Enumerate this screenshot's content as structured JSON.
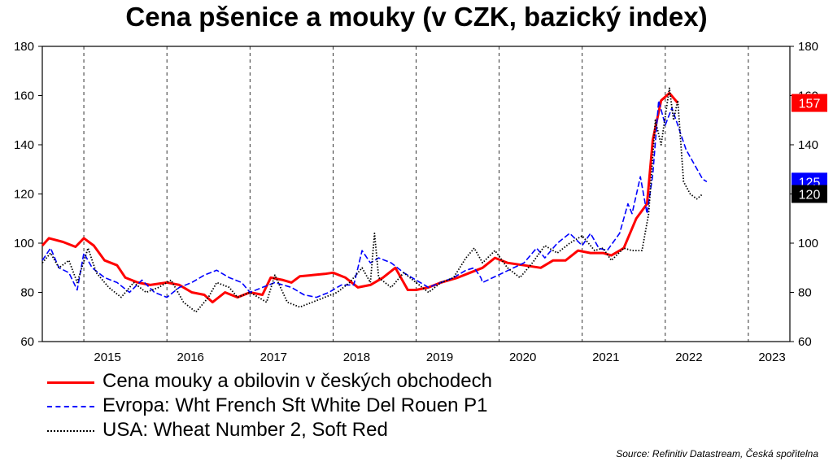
{
  "chart_data": {
    "type": "line",
    "title": "Cena pšenice a mouky (v CZK, bazický index)",
    "y_ticks": [
      60,
      80,
      100,
      120,
      140,
      160,
      180
    ],
    "x_ticks": [
      "2015",
      "2016",
      "2017",
      "2018",
      "2019",
      "2020",
      "2021",
      "2022",
      "2023"
    ],
    "ylim": [
      60,
      180
    ],
    "xlim": [
      2014.5,
      2023.5
    ],
    "grid": "vertical year lines only",
    "legend_position": "bottom",
    "series": [
      {
        "name": "Cena mouky a obilovin v českých obchodech",
        "color": "#ff0000",
        "style": "solid",
        "end_label": "157",
        "points": [
          [
            2014.5,
            99
          ],
          [
            2014.58,
            102
          ],
          [
            2014.75,
            100.5
          ],
          [
            2014.9,
            98.5
          ],
          [
            2015.0,
            102
          ],
          [
            2015.12,
            99
          ],
          [
            2015.25,
            93
          ],
          [
            2015.4,
            91
          ],
          [
            2015.5,
            86
          ],
          [
            2015.65,
            84
          ],
          [
            2015.8,
            83
          ],
          [
            2016.0,
            84
          ],
          [
            2016.15,
            83
          ],
          [
            2016.3,
            80
          ],
          [
            2016.45,
            79
          ],
          [
            2016.55,
            76
          ],
          [
            2016.7,
            80
          ],
          [
            2016.85,
            78
          ],
          [
            2017.0,
            80
          ],
          [
            2017.15,
            79
          ],
          [
            2017.25,
            86
          ],
          [
            2017.4,
            85
          ],
          [
            2017.5,
            84
          ],
          [
            2017.6,
            86.5
          ],
          [
            2017.75,
            87
          ],
          [
            2017.9,
            87.5
          ],
          [
            2018.0,
            88
          ],
          [
            2018.15,
            86
          ],
          [
            2018.3,
            82
          ],
          [
            2018.45,
            83
          ],
          [
            2018.6,
            86
          ],
          [
            2018.75,
            90
          ],
          [
            2018.9,
            81
          ],
          [
            2019.0,
            81
          ],
          [
            2019.15,
            82
          ],
          [
            2019.3,
            84
          ],
          [
            2019.5,
            86
          ],
          [
            2019.65,
            88
          ],
          [
            2019.8,
            90
          ],
          [
            2019.95,
            94
          ],
          [
            2020.1,
            92
          ],
          [
            2020.3,
            91
          ],
          [
            2020.5,
            90
          ],
          [
            2020.65,
            93
          ],
          [
            2020.8,
            93
          ],
          [
            2020.95,
            97
          ],
          [
            2021.1,
            96
          ],
          [
            2021.25,
            96
          ],
          [
            2021.35,
            95
          ],
          [
            2021.5,
            98
          ],
          [
            2021.65,
            110
          ],
          [
            2021.78,
            116
          ],
          [
            2021.85,
            142
          ],
          [
            2021.95,
            158
          ],
          [
            2022.05,
            161
          ],
          [
            2022.15,
            157
          ]
        ]
      },
      {
        "name": "Evropa: Wht French Sft White Del Rouen P1",
        "color": "#0000ff",
        "style": "dashed",
        "end_label": "125",
        "points": [
          [
            2014.5,
            93
          ],
          [
            2014.6,
            98
          ],
          [
            2014.7,
            90
          ],
          [
            2014.82,
            88
          ],
          [
            2014.92,
            81
          ],
          [
            2015.0,
            96
          ],
          [
            2015.1,
            90
          ],
          [
            2015.25,
            86
          ],
          [
            2015.4,
            84
          ],
          [
            2015.55,
            80
          ],
          [
            2015.7,
            85
          ],
          [
            2015.85,
            80
          ],
          [
            2016.0,
            78
          ],
          [
            2016.15,
            82
          ],
          [
            2016.3,
            84
          ],
          [
            2016.45,
            87
          ],
          [
            2016.6,
            89
          ],
          [
            2016.75,
            86
          ],
          [
            2016.9,
            84
          ],
          [
            2017.0,
            80
          ],
          [
            2017.15,
            82
          ],
          [
            2017.3,
            84
          ],
          [
            2017.5,
            82
          ],
          [
            2017.65,
            79
          ],
          [
            2017.8,
            78
          ],
          [
            2017.95,
            80
          ],
          [
            2018.1,
            83
          ],
          [
            2018.25,
            83
          ],
          [
            2018.35,
            97
          ],
          [
            2018.45,
            92
          ],
          [
            2018.55,
            94
          ],
          [
            2018.7,
            92
          ],
          [
            2018.85,
            88
          ],
          [
            2019.0,
            85
          ],
          [
            2019.15,
            82
          ],
          [
            2019.3,
            84
          ],
          [
            2019.45,
            86
          ],
          [
            2019.6,
            89
          ],
          [
            2019.7,
            90
          ],
          [
            2019.78,
            86
          ],
          [
            2019.8,
            84
          ],
          [
            2020.3,
            92
          ],
          [
            2020.45,
            98
          ],
          [
            2020.55,
            94
          ],
          [
            2020.7,
            100
          ],
          [
            2020.85,
            104
          ],
          [
            2021.0,
            99
          ],
          [
            2021.1,
            104
          ],
          [
            2021.2,
            98
          ],
          [
            2021.3,
            97
          ],
          [
            2021.45,
            104
          ],
          [
            2021.55,
            116
          ],
          [
            2021.6,
            112
          ],
          [
            2021.7,
            127
          ],
          [
            2021.78,
            112
          ],
          [
            2021.85,
            128
          ],
          [
            2021.92,
            158
          ],
          [
            2022.0,
            148
          ],
          [
            2022.08,
            155
          ],
          [
            2022.18,
            145
          ],
          [
            2022.25,
            138
          ],
          [
            2022.35,
            132
          ],
          [
            2022.45,
            126
          ],
          [
            2022.5,
            125
          ]
        ]
      },
      {
        "name": "USA: Wheat Number 2, Soft Red",
        "color": "#000000",
        "style": "dotted",
        "end_label": "120",
        "points": [
          [
            2014.5,
            92
          ],
          [
            2014.6,
            96
          ],
          [
            2014.7,
            90
          ],
          [
            2014.82,
            93
          ],
          [
            2014.92,
            84
          ],
          [
            2015.05,
            98
          ],
          [
            2015.15,
            88
          ],
          [
            2015.3,
            82
          ],
          [
            2015.45,
            78
          ],
          [
            2015.6,
            84
          ],
          [
            2015.75,
            80
          ],
          [
            2015.9,
            82
          ],
          [
            2016.05,
            85
          ],
          [
            2016.2,
            76
          ],
          [
            2016.35,
            72
          ],
          [
            2016.5,
            78
          ],
          [
            2016.6,
            84
          ],
          [
            2016.75,
            82
          ],
          [
            2016.85,
            78
          ],
          [
            2017.0,
            80
          ],
          [
            2017.2,
            76
          ],
          [
            2017.3,
            87
          ],
          [
            2017.45,
            76
          ],
          [
            2017.6,
            74
          ],
          [
            2017.75,
            76
          ],
          [
            2017.9,
            78
          ],
          [
            2018.05,
            80
          ],
          [
            2018.2,
            84
          ],
          [
            2018.35,
            90
          ],
          [
            2018.45,
            84
          ],
          [
            2018.5,
            104
          ],
          [
            2018.55,
            86
          ],
          [
            2018.7,
            82
          ],
          [
            2018.85,
            88
          ],
          [
            2019.0,
            84
          ],
          [
            2019.15,
            80
          ],
          [
            2019.3,
            84
          ],
          [
            2019.45,
            86
          ],
          [
            2019.6,
            94
          ],
          [
            2019.7,
            98
          ],
          [
            2019.8,
            92
          ],
          [
            2019.95,
            97
          ],
          [
            2020.1,
            90
          ],
          [
            2020.25,
            86
          ],
          [
            2020.4,
            92
          ],
          [
            2020.55,
            99
          ],
          [
            2020.7,
            96
          ],
          [
            2020.85,
            100
          ],
          [
            2021.0,
            103
          ],
          [
            2021.15,
            97
          ],
          [
            2021.25,
            98
          ],
          [
            2021.35,
            93
          ],
          [
            2021.5,
            98
          ],
          [
            2021.6,
            97
          ],
          [
            2021.72,
            97
          ],
          [
            2021.8,
            112
          ],
          [
            2021.88,
            150
          ],
          [
            2021.95,
            140
          ],
          [
            2022.05,
            163
          ],
          [
            2022.1,
            150
          ],
          [
            2022.15,
            158
          ],
          [
            2022.22,
            125
          ],
          [
            2022.3,
            120
          ],
          [
            2022.38,
            118
          ],
          [
            2022.45,
            120
          ]
        ]
      }
    ]
  },
  "source_text": "Source: Refinitiv Datastream, Česká spořitelna"
}
